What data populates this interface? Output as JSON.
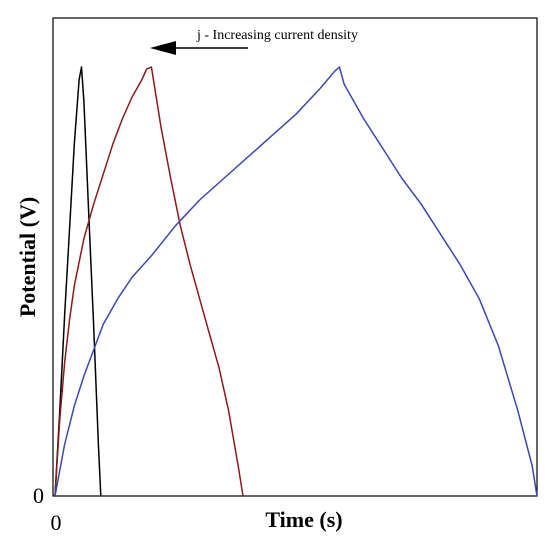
{
  "chart_data": {
    "type": "line",
    "xlabel": "Time (s)",
    "ylabel": "Potential (V)",
    "x_tick_labels": [
      "0"
    ],
    "y_tick_labels": [
      "0"
    ],
    "xlim": [
      0,
      100
    ],
    "ylim": [
      0,
      100
    ],
    "grid": false,
    "annotation": "j - Increasing current density",
    "series": [
      {
        "color": "#000000",
        "x": [
          0,
          1,
          2,
          3,
          4,
          5,
          5.5,
          6,
          7,
          8,
          9,
          9.5
        ],
        "y": [
          0,
          20,
          42,
          62,
          82,
          97,
          100,
          92,
          66,
          40,
          12,
          0
        ]
      },
      {
        "color": "#8b1a1a",
        "x": [
          0,
          1,
          2,
          3,
          4,
          6,
          8,
          10,
          12,
          14,
          16,
          18,
          19,
          20,
          22,
          24,
          26,
          28,
          30,
          32,
          34,
          36,
          38,
          39
        ],
        "y": [
          0,
          18,
          31,
          41,
          49,
          60,
          68,
          75,
          82,
          88,
          93,
          97,
          99.5,
          100,
          86,
          74,
          63,
          54,
          46,
          38,
          30,
          20,
          7,
          0
        ]
      },
      {
        "color": "#3a47b5",
        "x": [
          0,
          2,
          4,
          6,
          8,
          10,
          13,
          16,
          20,
          25,
          30,
          35,
          40,
          45,
          50,
          55,
          58,
          59,
          60,
          64,
          68,
          72,
          76,
          80,
          84,
          88,
          92,
          96,
          99,
          100
        ],
        "y": [
          0,
          12,
          21,
          28,
          34,
          40,
          46,
          51,
          56,
          63,
          69,
          74,
          79,
          84,
          89,
          95,
          99,
          100,
          96,
          88,
          81,
          74,
          68,
          61,
          54,
          46,
          35,
          20,
          7,
          0
        ]
      }
    ]
  }
}
